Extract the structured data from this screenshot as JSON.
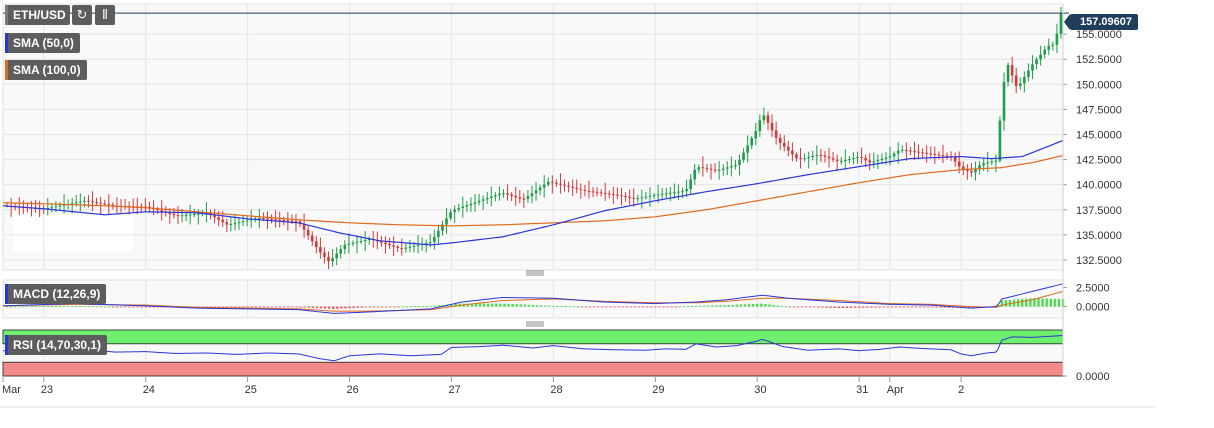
{
  "toolbar": {
    "symbol": "ETH/USD",
    "refresh_icon": "refresh-icon",
    "chart_type_icon": "candlestick-icon"
  },
  "last_price": "157.09607",
  "legends": {
    "sma50": "SMA (50,0)",
    "sma100": "SMA (100,0)",
    "macd": "MACD (12,26,9)",
    "rsi": "RSI (14,70,30,1)"
  },
  "colors": {
    "up": "#1e9e4a",
    "down": "#d6383b",
    "sma50": "#2a36d8",
    "sma100": "#e06a1b",
    "macd_line": "#2a36d8",
    "signal_line": "#e06a1b",
    "rsi_over": "#6ef06e",
    "rsi_under": "#f28a8a",
    "price_line": "#1f3e5c"
  },
  "chart_data": [
    {
      "type": "candlestick",
      "title": "ETH/USD",
      "y_ticks": [
        "132.5000",
        "135.0000",
        "137.5000",
        "140.0000",
        "142.5000",
        "145.0000",
        "147.5000",
        "150.0000",
        "152.5000",
        "155.0000"
      ],
      "ylim": [
        131.5,
        158.0
      ],
      "x_ticks": [
        "Mar",
        "23",
        "24",
        "25",
        "26",
        "27",
        "28",
        "29",
        "30",
        "31",
        "Apr",
        "2"
      ],
      "x_tick_values": [
        22.6,
        23,
        24,
        25,
        26,
        27,
        28,
        29,
        30,
        31,
        31.3,
        32
      ],
      "x_range": [
        22.6,
        33.0
      ],
      "last_price": 157.09607,
      "close_keypoints": [
        [
          22.6,
          137.9
        ],
        [
          23.0,
          137.6
        ],
        [
          23.4,
          138.4
        ],
        [
          23.7,
          137.9
        ],
        [
          24.0,
          137.8
        ],
        [
          24.3,
          136.9
        ],
        [
          24.6,
          137.2
        ],
        [
          24.8,
          136.0
        ],
        [
          25.1,
          136.7
        ],
        [
          25.5,
          136.3
        ],
        [
          25.7,
          133.4
        ],
        [
          25.8,
          132.3
        ],
        [
          25.95,
          134.0
        ],
        [
          26.2,
          134.6
        ],
        [
          26.5,
          133.6
        ],
        [
          26.8,
          134.3
        ],
        [
          27.0,
          137.4
        ],
        [
          27.3,
          138.5
        ],
        [
          27.5,
          139.2
        ],
        [
          27.7,
          138.5
        ],
        [
          27.95,
          140.3
        ],
        [
          28.3,
          139.4
        ],
        [
          28.6,
          139.0
        ],
        [
          28.8,
          138.6
        ],
        [
          29.0,
          139.0
        ],
        [
          29.3,
          139.4
        ],
        [
          29.4,
          141.8
        ],
        [
          29.6,
          141.4
        ],
        [
          29.8,
          142.0
        ],
        [
          30.0,
          145.6
        ],
        [
          30.05,
          147.2
        ],
        [
          30.2,
          144.4
        ],
        [
          30.4,
          142.5
        ],
        [
          30.6,
          143.0
        ],
        [
          30.8,
          142.3
        ],
        [
          31.0,
          142.8
        ],
        [
          31.1,
          142.2
        ],
        [
          31.3,
          142.8
        ],
        [
          31.4,
          143.5
        ],
        [
          31.6,
          143.2
        ],
        [
          31.9,
          142.8
        ],
        [
          32.0,
          141.6
        ],
        [
          32.1,
          141.2
        ],
        [
          32.2,
          142.1
        ],
        [
          32.35,
          142.4
        ],
        [
          32.4,
          148.8
        ],
        [
          32.45,
          152.2
        ],
        [
          32.55,
          149.6
        ],
        [
          32.7,
          152.0
        ],
        [
          32.85,
          153.8
        ],
        [
          32.92,
          154.0
        ],
        [
          32.98,
          157.1
        ]
      ],
      "sma50_keypoints": [
        [
          22.6,
          137.9
        ],
        [
          23.0,
          137.6
        ],
        [
          23.6,
          137.0
        ],
        [
          24.0,
          137.3
        ],
        [
          24.5,
          137.2
        ],
        [
          25.0,
          136.6
        ],
        [
          25.5,
          136.2
        ],
        [
          25.9,
          135.2
        ],
        [
          26.3,
          134.4
        ],
        [
          26.8,
          134.0
        ],
        [
          27.0,
          134.2
        ],
        [
          27.5,
          134.8
        ],
        [
          28.0,
          136.0
        ],
        [
          28.5,
          137.4
        ],
        [
          29.0,
          138.4
        ],
        [
          29.5,
          139.3
        ],
        [
          30.0,
          140.1
        ],
        [
          30.5,
          141.0
        ],
        [
          31.0,
          141.8
        ],
        [
          31.5,
          142.6
        ],
        [
          32.0,
          142.8
        ],
        [
          32.3,
          142.6
        ],
        [
          32.6,
          142.8
        ],
        [
          33.0,
          144.4
        ]
      ],
      "sma100_keypoints": [
        [
          22.6,
          138.2
        ],
        [
          23.0,
          138.1
        ],
        [
          23.6,
          137.9
        ],
        [
          24.0,
          137.7
        ],
        [
          24.5,
          137.3
        ],
        [
          25.0,
          136.9
        ],
        [
          25.5,
          136.5
        ],
        [
          26.0,
          136.2
        ],
        [
          26.5,
          136.0
        ],
        [
          27.0,
          135.9
        ],
        [
          27.5,
          136.0
        ],
        [
          28.0,
          136.2
        ],
        [
          28.5,
          136.4
        ],
        [
          29.0,
          136.8
        ],
        [
          29.5,
          137.5
        ],
        [
          30.0,
          138.4
        ],
        [
          30.5,
          139.3
        ],
        [
          31.0,
          140.2
        ],
        [
          31.5,
          141.0
        ],
        [
          32.0,
          141.5
        ],
        [
          32.4,
          141.7
        ],
        [
          32.7,
          142.2
        ],
        [
          33.0,
          142.9
        ]
      ]
    },
    {
      "type": "macd",
      "title": "MACD (12,26,9)",
      "y_ticks": [
        "2.5000",
        "0.0000"
      ],
      "ylim": [
        -1.5,
        3.5
      ],
      "macd_keypoints": [
        [
          22.6,
          0.1
        ],
        [
          23.3,
          0.4
        ],
        [
          24.0,
          0.1
        ],
        [
          24.5,
          -0.2
        ],
        [
          25.0,
          -0.3
        ],
        [
          25.5,
          -0.4
        ],
        [
          25.85,
          -0.9
        ],
        [
          26.2,
          -0.7
        ],
        [
          26.8,
          -0.3
        ],
        [
          27.1,
          0.6
        ],
        [
          27.5,
          1.2
        ],
        [
          28.0,
          1.1
        ],
        [
          28.5,
          0.6
        ],
        [
          29.0,
          0.4
        ],
        [
          29.4,
          0.6
        ],
        [
          29.7,
          0.9
        ],
        [
          30.05,
          1.5
        ],
        [
          30.3,
          1.1
        ],
        [
          30.8,
          0.6
        ],
        [
          31.3,
          0.3
        ],
        [
          31.7,
          0.2
        ],
        [
          32.1,
          -0.2
        ],
        [
          32.35,
          0.0
        ],
        [
          32.4,
          1.0
        ],
        [
          32.7,
          2.0
        ],
        [
          33.0,
          3.0
        ]
      ],
      "signal_keypoints": [
        [
          22.6,
          0.1
        ],
        [
          23.3,
          0.3
        ],
        [
          24.0,
          0.2
        ],
        [
          24.5,
          -0.1
        ],
        [
          25.0,
          -0.2
        ],
        [
          25.5,
          -0.3
        ],
        [
          25.85,
          -0.6
        ],
        [
          26.2,
          -0.6
        ],
        [
          26.8,
          -0.4
        ],
        [
          27.1,
          0.2
        ],
        [
          27.5,
          0.8
        ],
        [
          28.0,
          1.0
        ],
        [
          28.5,
          0.7
        ],
        [
          29.0,
          0.5
        ],
        [
          29.4,
          0.5
        ],
        [
          29.7,
          0.7
        ],
        [
          30.05,
          1.1
        ],
        [
          30.3,
          1.1
        ],
        [
          30.8,
          0.8
        ],
        [
          31.3,
          0.4
        ],
        [
          31.7,
          0.3
        ],
        [
          32.1,
          0.0
        ],
        [
          32.35,
          -0.1
        ],
        [
          32.4,
          0.2
        ],
        [
          32.7,
          0.9
        ],
        [
          33.0,
          2.0
        ]
      ]
    },
    {
      "type": "rsi",
      "title": "RSI (14,70,30,1)",
      "y_ticks": [
        "0.0000"
      ],
      "ylim": [
        0,
        100
      ],
      "overbought": 70,
      "oversold": 30,
      "rsi_keypoints": [
        [
          22.6,
          55
        ],
        [
          23.0,
          53
        ],
        [
          23.4,
          58
        ],
        [
          23.7,
          52
        ],
        [
          24.0,
          53
        ],
        [
          24.3,
          49
        ],
        [
          24.6,
          50
        ],
        [
          24.9,
          47
        ],
        [
          25.2,
          50
        ],
        [
          25.5,
          48
        ],
        [
          25.7,
          38
        ],
        [
          25.85,
          33
        ],
        [
          26.0,
          44
        ],
        [
          26.3,
          48
        ],
        [
          26.6,
          44
        ],
        [
          26.9,
          47
        ],
        [
          27.0,
          62
        ],
        [
          27.3,
          64
        ],
        [
          27.5,
          67
        ],
        [
          27.8,
          61
        ],
        [
          28.0,
          66
        ],
        [
          28.3,
          59
        ],
        [
          28.6,
          57
        ],
        [
          28.9,
          56
        ],
        [
          29.1,
          59
        ],
        [
          29.3,
          58
        ],
        [
          29.4,
          70
        ],
        [
          29.6,
          63
        ],
        [
          29.8,
          66
        ],
        [
          30.0,
          76
        ],
        [
          30.05,
          80
        ],
        [
          30.25,
          64
        ],
        [
          30.5,
          56
        ],
        [
          30.8,
          59
        ],
        [
          31.0,
          55
        ],
        [
          31.2,
          58
        ],
        [
          31.4,
          63
        ],
        [
          31.6,
          60
        ],
        [
          31.9,
          57
        ],
        [
          32.0,
          48
        ],
        [
          32.1,
          44
        ],
        [
          32.25,
          50
        ],
        [
          32.35,
          52
        ],
        [
          32.4,
          78
        ],
        [
          32.5,
          85
        ],
        [
          32.7,
          84
        ],
        [
          33.0,
          88
        ]
      ]
    }
  ]
}
